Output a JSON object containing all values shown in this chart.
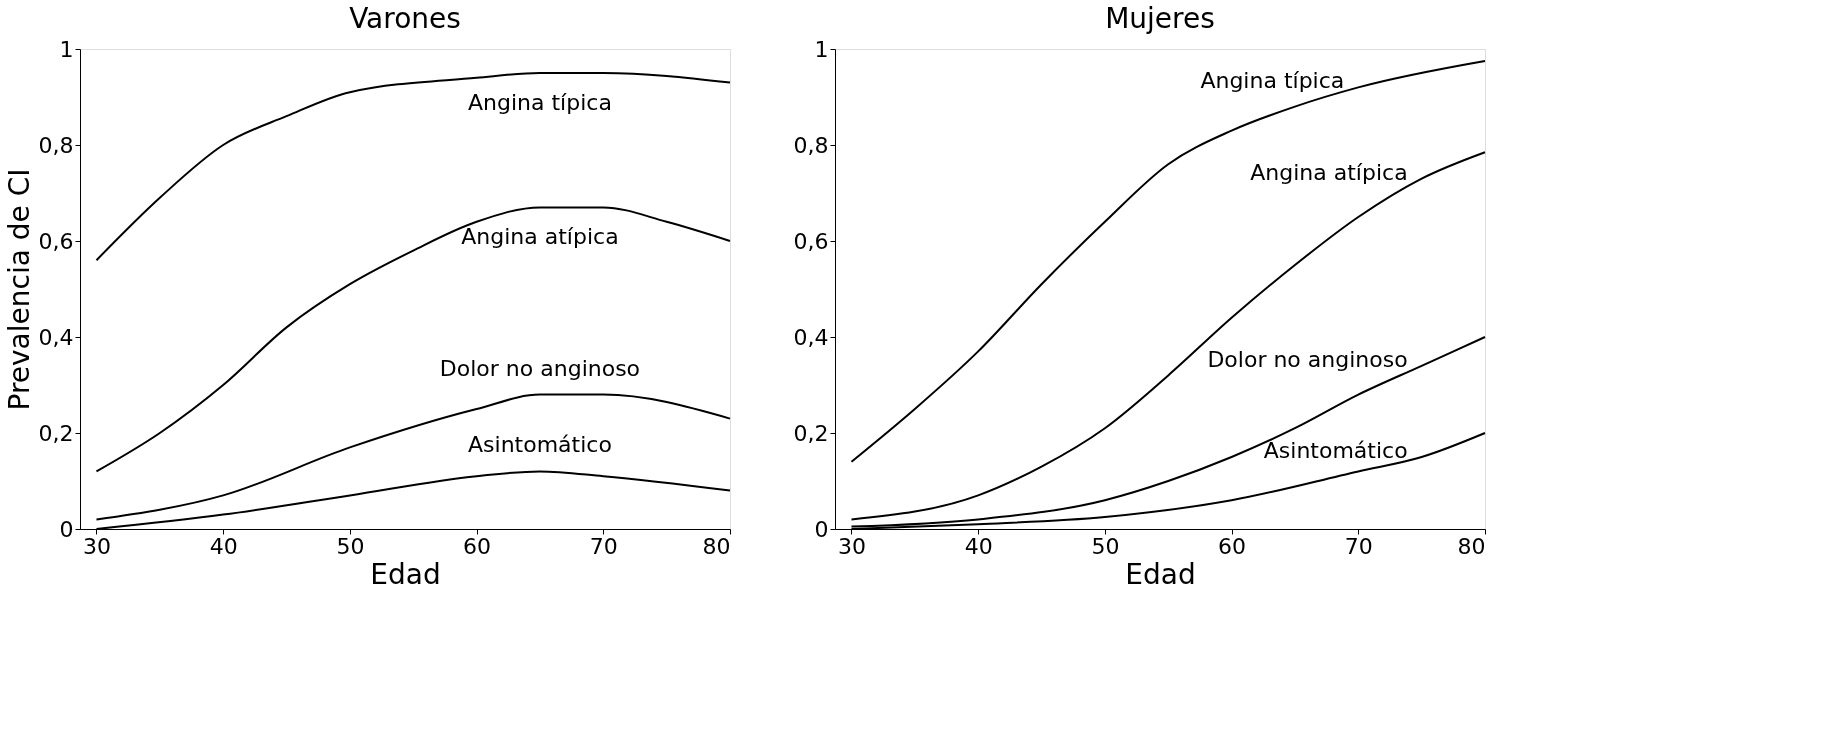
{
  "chart_data": [
    {
      "type": "line",
      "title": "Varones",
      "xlabel": "Edad",
      "ylabel": "Prevalencia de CI",
      "xlim": [
        28.7,
        80
      ],
      "ylim": [
        0,
        1
      ],
      "xticks": [
        30,
        40,
        50,
        60,
        70,
        80
      ],
      "yticks": [
        0,
        {
          "value": 0.2,
          "label": "0,2"
        },
        {
          "value": 0.4,
          "label": "0,4"
        },
        {
          "value": 0.6,
          "label": "0,6"
        },
        {
          "value": 0.8,
          "label": "0,8"
        },
        1
      ],
      "grid": false,
      "marker": "none",
      "line_style": "solid",
      "series": [
        {
          "name": "Angina típica",
          "color": "#000000",
          "x": [
            30,
            35,
            40,
            45,
            50,
            60,
            65,
            70,
            80
          ],
          "values": [
            0.56,
            0.69,
            0.8,
            0.86,
            0.91,
            0.94,
            0.95,
            0.95,
            0.93
          ]
        },
        {
          "name": "Angina atípica",
          "color": "#000000",
          "x": [
            30,
            35,
            40,
            45,
            50,
            55,
            60,
            65,
            70,
            75,
            80
          ],
          "values": [
            0.12,
            0.2,
            0.3,
            0.42,
            0.51,
            0.58,
            0.64,
            0.67,
            0.67,
            0.64,
            0.6
          ]
        },
        {
          "name": "Dolor no anginoso",
          "color": "#000000",
          "x": [
            30,
            40,
            50,
            60,
            65,
            70,
            80
          ],
          "values": [
            0.02,
            0.07,
            0.17,
            0.25,
            0.28,
            0.28,
            0.23
          ]
        },
        {
          "name": "Asintomático",
          "color": "#000000",
          "x": [
            30,
            40,
            50,
            60,
            65,
            70,
            80
          ],
          "values": [
            0.0,
            0.03,
            0.07,
            0.11,
            0.12,
            0.11,
            0.08
          ]
        }
      ]
    },
    {
      "type": "line",
      "title": "Mujeres",
      "xlabel": "Edad",
      "xlim": [
        28.7,
        80
      ],
      "ylim": [
        0,
        1
      ],
      "xticks": [
        30,
        40,
        50,
        60,
        70,
        80
      ],
      "yticks": [
        0,
        {
          "value": 0.2,
          "label": "0,2"
        },
        {
          "value": 0.4,
          "label": "0,4"
        },
        {
          "value": 0.6,
          "label": "0,6"
        },
        {
          "value": 0.8,
          "label": "0,8"
        },
        1
      ],
      "grid": false,
      "marker": "none",
      "line_style": "solid",
      "series": [
        {
          "name": "Angina típica",
          "color": "#000000",
          "x": [
            30,
            35,
            40,
            45,
            50,
            55,
            60,
            65,
            70,
            80
          ],
          "values": [
            0.14,
            0.25,
            0.37,
            0.51,
            0.64,
            0.76,
            0.83,
            0.88,
            0.92,
            0.975
          ]
        },
        {
          "name": "Angina atípica",
          "color": "#000000",
          "x": [
            30,
            40,
            45,
            50,
            55,
            60,
            65,
            70,
            75,
            80
          ],
          "values": [
            0.02,
            0.07,
            0.13,
            0.21,
            0.32,
            0.44,
            0.55,
            0.65,
            0.73,
            0.785
          ]
        },
        {
          "name": "Dolor no anginoso",
          "color": "#000000",
          "x": [
            30,
            40,
            50,
            55,
            60,
            65,
            70,
            75,
            80
          ],
          "values": [
            0.005,
            0.02,
            0.06,
            0.1,
            0.15,
            0.21,
            0.28,
            0.34,
            0.4
          ]
        },
        {
          "name": "Asintomático",
          "color": "#000000",
          "x": [
            30,
            40,
            50,
            60,
            70,
            75,
            80
          ],
          "values": [
            0.0,
            0.01,
            0.025,
            0.06,
            0.12,
            0.15,
            0.2
          ]
        }
      ]
    }
  ]
}
